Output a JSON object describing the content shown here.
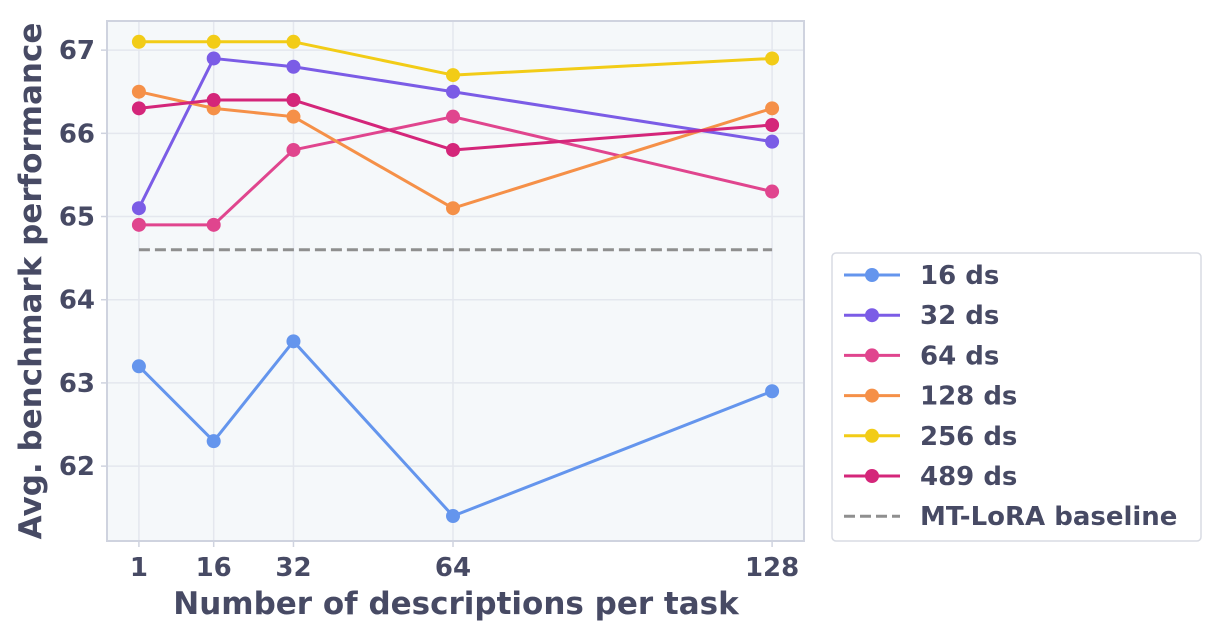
{
  "chart_data": {
    "type": "line",
    "title": "",
    "xlabel": "Number of descriptions per task",
    "ylabel": "Avg. benchmark performance",
    "x": [
      1,
      16,
      32,
      64,
      128
    ],
    "x_tick_labels": [
      "1",
      "16",
      "32",
      "64",
      "128"
    ],
    "y_ticks": [
      62,
      63,
      64,
      65,
      66,
      67
    ],
    "y_tick_labels": [
      "62",
      "63",
      "64",
      "65",
      "66",
      "67"
    ],
    "xlim": [
      -5.4,
      134.4
    ],
    "ylim": [
      61.1,
      67.35
    ],
    "grid": true,
    "legend_position": "right",
    "series": [
      {
        "name": "16 ds",
        "color": "#6495ed",
        "values": [
          63.2,
          62.3,
          63.5,
          61.4,
          62.9
        ]
      },
      {
        "name": "32 ds",
        "color": "#7b5ce6",
        "values": [
          65.1,
          66.9,
          66.8,
          66.5,
          65.9
        ]
      },
      {
        "name": "64 ds",
        "color": "#e0458e",
        "values": [
          64.9,
          64.9,
          65.8,
          66.2,
          65.3
        ]
      },
      {
        "name": "128 ds",
        "color": "#f59048",
        "values": [
          66.5,
          66.3,
          66.2,
          65.1,
          66.3
        ]
      },
      {
        "name": "256 ds",
        "color": "#f2cc17",
        "values": [
          67.1,
          67.1,
          67.1,
          66.7,
          66.9
        ]
      },
      {
        "name": "489 ds",
        "color": "#d4267a",
        "values": [
          66.3,
          66.4,
          66.4,
          65.8,
          66.1
        ]
      }
    ],
    "baseline": {
      "name": "MT-LoRA baseline",
      "color": "#8f8f8f",
      "value": 64.6
    }
  }
}
